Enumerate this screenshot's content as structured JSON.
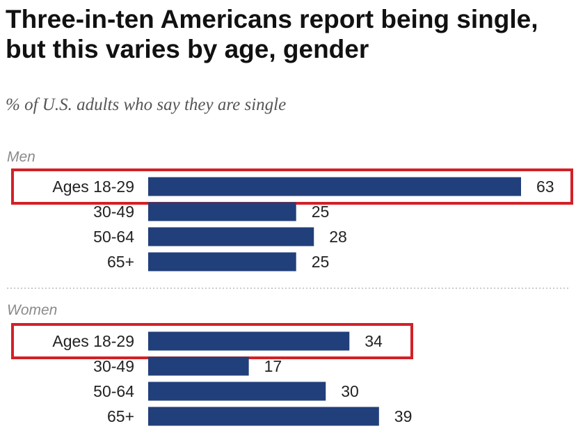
{
  "chart_data": {
    "type": "bar",
    "orientation": "horizontal",
    "title": "Three-in-ten Americans report being single, but this varies by age, gender",
    "subtitle": "% of U.S. adults who say they are single",
    "xlim": [
      0,
      65
    ],
    "grid": false,
    "bar_color": "#213f7a",
    "highlight_color": "#d32027",
    "groups": [
      {
        "name": "Men",
        "categories": [
          "Ages 18-29",
          "30-49",
          "50-64",
          "65+"
        ],
        "values": [
          63,
          25,
          28,
          25
        ],
        "highlighted": [
          true,
          false,
          false,
          false
        ]
      },
      {
        "name": "Women",
        "categories": [
          "Ages 18-29",
          "30-49",
          "50-64",
          "65+"
        ],
        "values": [
          34,
          17,
          30,
          39
        ],
        "highlighted": [
          true,
          false,
          false,
          false
        ]
      }
    ]
  }
}
